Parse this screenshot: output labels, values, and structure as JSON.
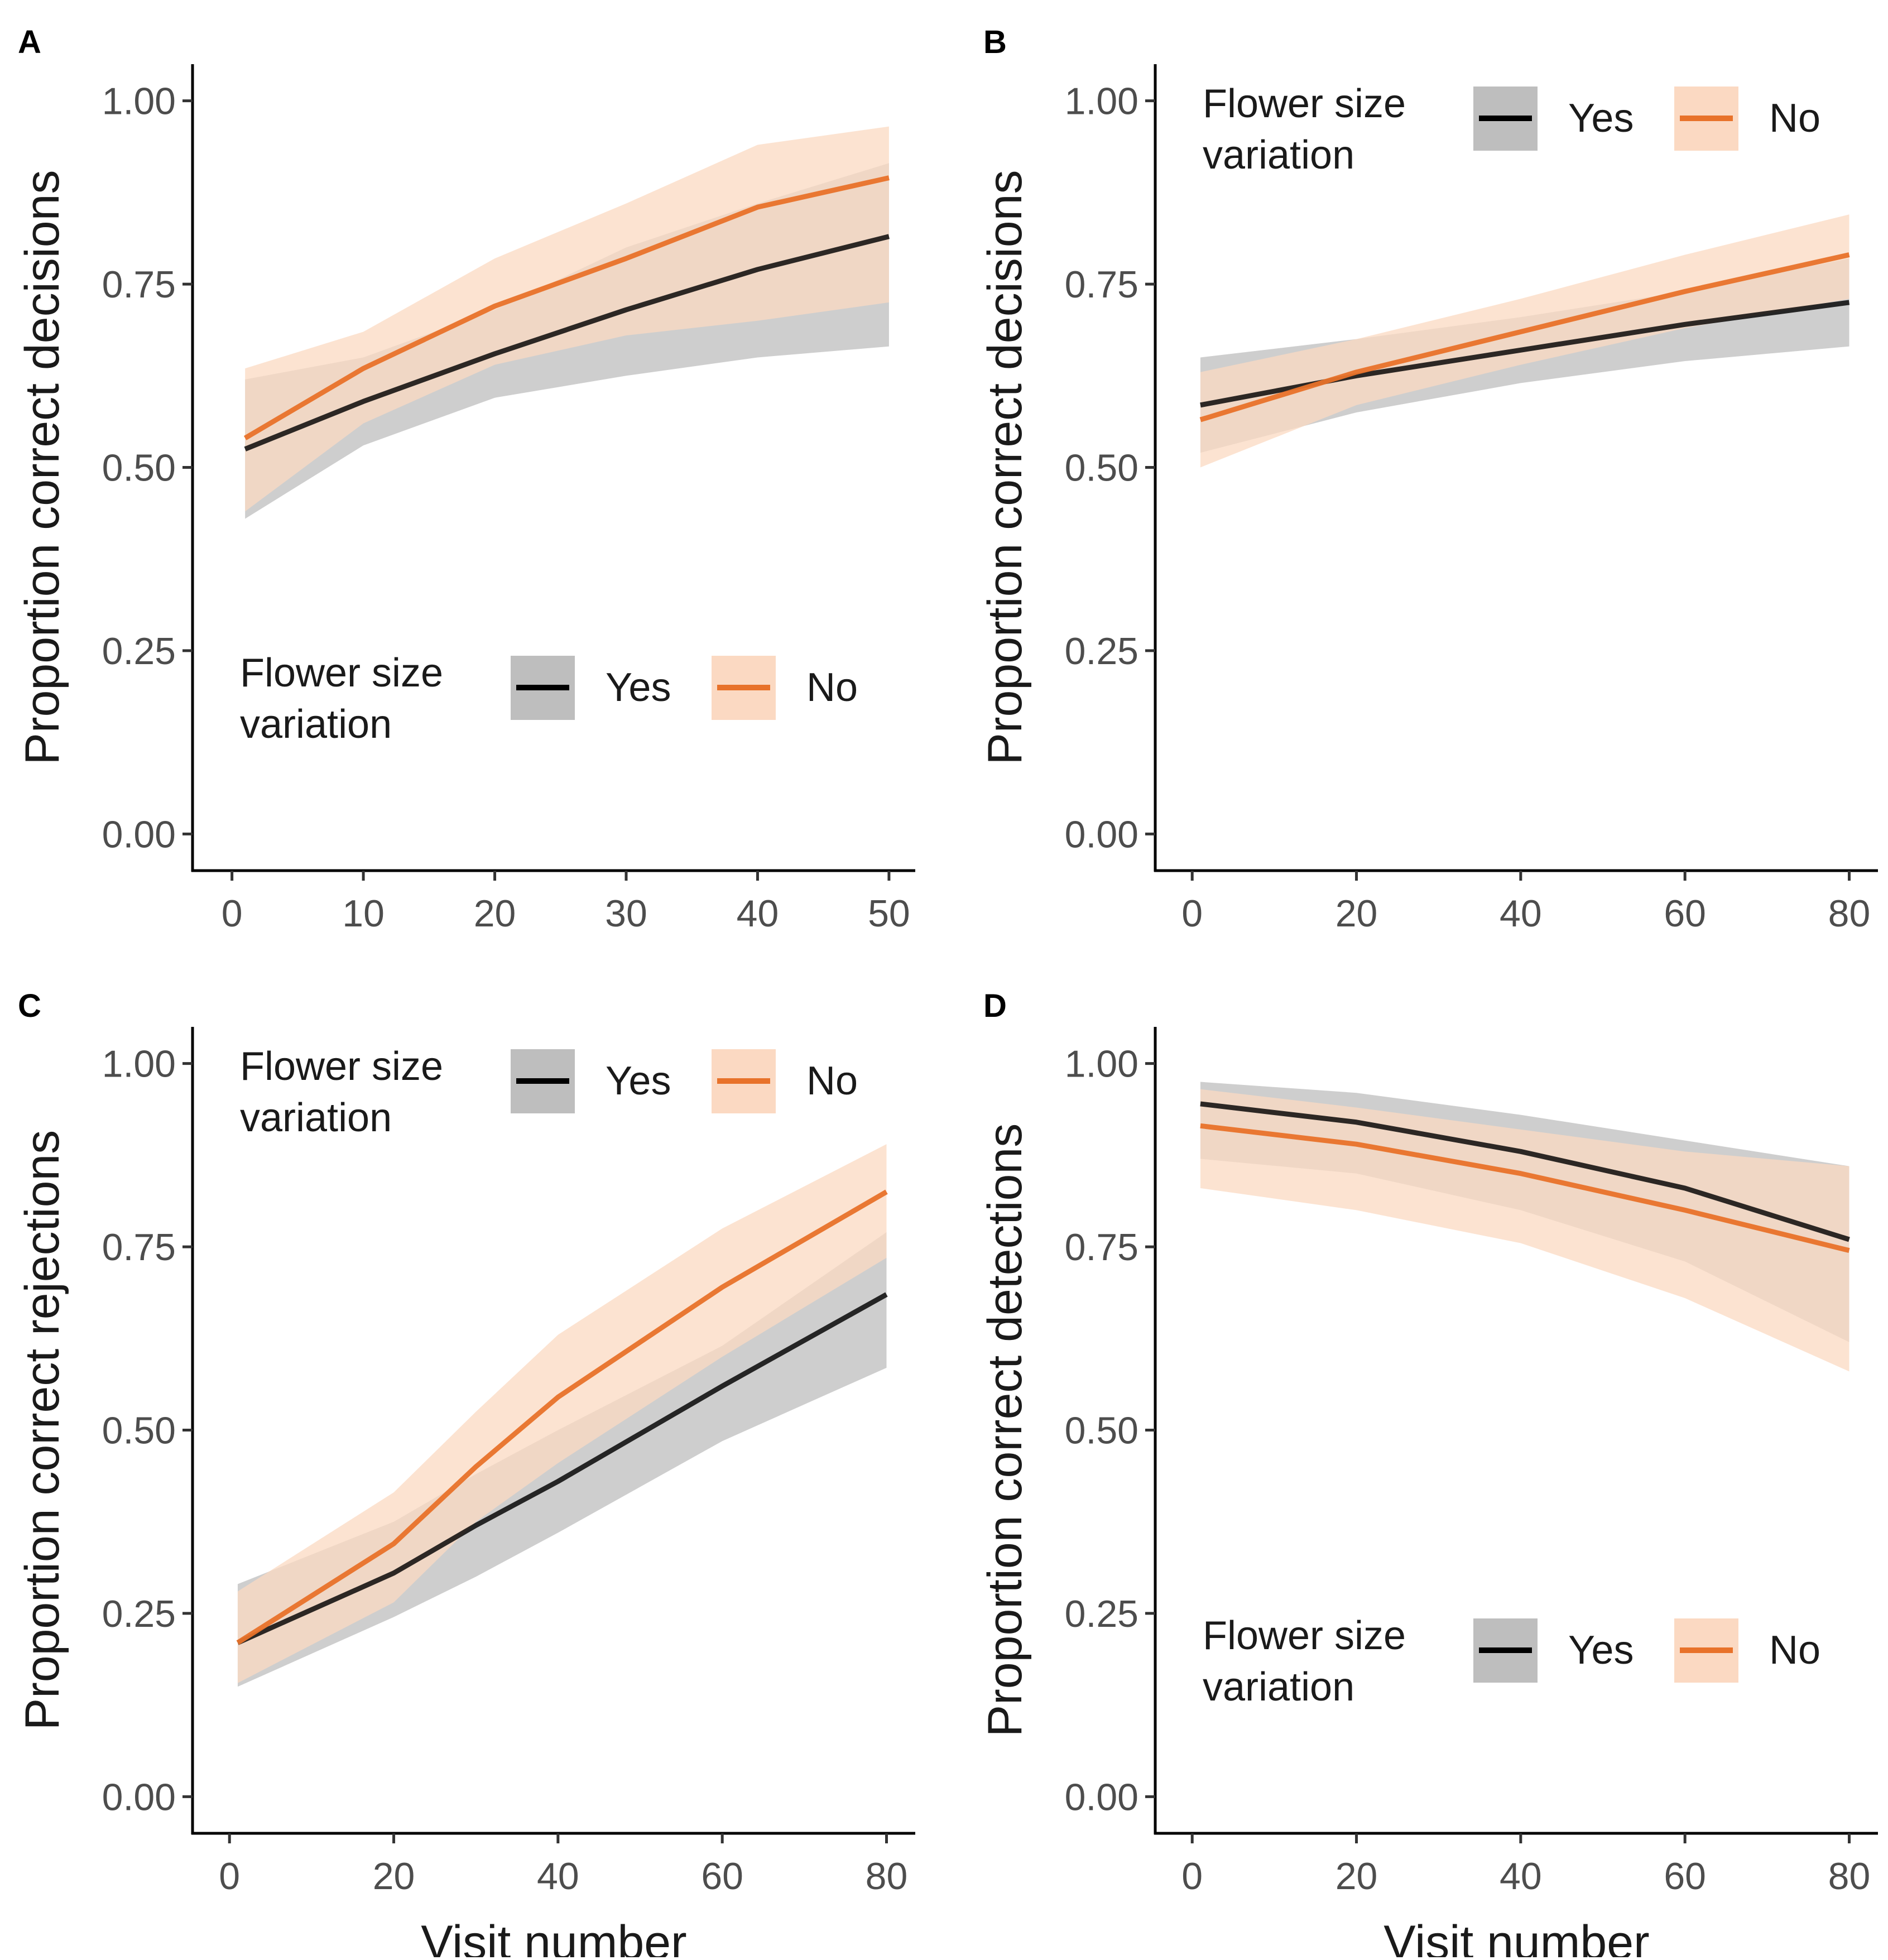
{
  "figure": {
    "colors": {
      "yes_line": "#000000",
      "no_line": "#e8722a",
      "yes_band": "#bebebe",
      "no_band": "#fbd9c2"
    }
  },
  "chart_data": [
    {
      "panel": "A",
      "type": "line",
      "title": "",
      "xlabel": "",
      "ylabel": "Proportion correct decisions",
      "xlim": [
        -3,
        52
      ],
      "ylim": [
        -0.05,
        1.05
      ],
      "xticks": [
        0,
        10,
        20,
        30,
        40,
        50
      ],
      "xtick_labels": [
        "0",
        "10",
        "20",
        "30",
        "40",
        "50"
      ],
      "yticks": [
        0,
        0.25,
        0.5,
        0.75,
        1
      ],
      "ytick_labels": [
        "0.00",
        "0.25",
        "0.50",
        "0.75",
        "1.00"
      ],
      "legend": {
        "position": "bottom-right",
        "title": "Flower size variation",
        "title_lines": [
          "Flower size",
          "variation"
        ],
        "entries": [
          "Yes",
          "No"
        ]
      },
      "series": [
        {
          "name": "Yes",
          "x": [
            1,
            10,
            20,
            30,
            40,
            50
          ],
          "y": [
            0.525,
            0.59,
            0.655,
            0.715,
            0.77,
            0.815
          ],
          "lower": [
            0.43,
            0.53,
            0.595,
            0.625,
            0.65,
            0.665
          ],
          "upper": [
            0.62,
            0.65,
            0.715,
            0.8,
            0.86,
            0.915
          ]
        },
        {
          "name": "No",
          "x": [
            1,
            10,
            20,
            30,
            40,
            50
          ],
          "y": [
            0.54,
            0.635,
            0.72,
            0.785,
            0.855,
            0.895
          ],
          "lower": [
            0.44,
            0.56,
            0.64,
            0.68,
            0.7,
            0.725
          ],
          "upper": [
            0.635,
            0.685,
            0.785,
            0.86,
            0.94,
            0.965
          ]
        }
      ]
    },
    {
      "panel": "B",
      "type": "line",
      "title": "",
      "xlabel": "",
      "ylabel": "Proportion correct decisions",
      "xlim": [
        -4.5,
        83.5
      ],
      "ylim": [
        -0.05,
        1.05
      ],
      "xticks": [
        0,
        20,
        40,
        60,
        80
      ],
      "xtick_labels": [
        "0",
        "20",
        "40",
        "60",
        "80"
      ],
      "yticks": [
        0,
        0.25,
        0.5,
        0.75,
        1
      ],
      "ytick_labels": [
        "0.00",
        "0.25",
        "0.50",
        "0.75",
        "1.00"
      ],
      "legend": {
        "position": "top-right",
        "title": "Flower size variation",
        "title_lines": [
          "Flower size",
          "variation"
        ],
        "entries": [
          "Yes",
          "No"
        ]
      },
      "series": [
        {
          "name": "Yes",
          "x": [
            1,
            20,
            40,
            60,
            80
          ],
          "y": [
            0.585,
            0.625,
            0.66,
            0.695,
            0.725
          ],
          "lower": [
            0.52,
            0.575,
            0.615,
            0.645,
            0.665
          ],
          "upper": [
            0.65,
            0.675,
            0.705,
            0.74,
            0.785
          ]
        },
        {
          "name": "No",
          "x": [
            1,
            20,
            40,
            60,
            80
          ],
          "y": [
            0.565,
            0.63,
            0.685,
            0.74,
            0.79
          ],
          "lower": [
            0.5,
            0.585,
            0.64,
            0.69,
            0.73
          ],
          "upper": [
            0.63,
            0.675,
            0.73,
            0.79,
            0.845
          ]
        }
      ]
    },
    {
      "panel": "C",
      "type": "line",
      "title": "",
      "xlabel": "Visit number",
      "ylabel": "Proportion correct rejections",
      "xlim": [
        -4.5,
        83.5
      ],
      "ylim": [
        -0.05,
        1.05
      ],
      "xticks": [
        0,
        20,
        40,
        60,
        80
      ],
      "xtick_labels": [
        "0",
        "20",
        "40",
        "60",
        "80"
      ],
      "yticks": [
        0,
        0.25,
        0.5,
        0.75,
        1
      ],
      "ytick_labels": [
        "0.00",
        "0.25",
        "0.50",
        "0.75",
        "1.00"
      ],
      "legend": {
        "position": "top-right",
        "title": "Flower size variation",
        "title_lines": [
          "Flower size",
          "variation"
        ],
        "entries": [
          "Yes",
          "No"
        ]
      },
      "series": [
        {
          "name": "Yes",
          "x": [
            1,
            20,
            30,
            40,
            60,
            80
          ],
          "y": [
            0.21,
            0.305,
            0.37,
            0.43,
            0.56,
            0.685
          ],
          "lower": [
            0.15,
            0.245,
            0.3,
            0.36,
            0.485,
            0.585
          ],
          "upper": [
            0.29,
            0.375,
            0.44,
            0.5,
            0.615,
            0.77
          ]
        },
        {
          "name": "No",
          "x": [
            1,
            20,
            30,
            40,
            60,
            80
          ],
          "y": [
            0.21,
            0.345,
            0.45,
            0.545,
            0.695,
            0.825
          ],
          "lower": [
            0.155,
            0.265,
            0.375,
            0.455,
            0.6,
            0.735
          ],
          "upper": [
            0.28,
            0.415,
            0.525,
            0.63,
            0.775,
            0.89
          ]
        }
      ]
    },
    {
      "panel": "D",
      "type": "line",
      "title": "",
      "xlabel": "Visit number",
      "ylabel": "Proportion correct detections",
      "xlim": [
        -4.5,
        83.5
      ],
      "ylim": [
        -0.05,
        1.05
      ],
      "xticks": [
        0,
        20,
        40,
        60,
        80
      ],
      "xtick_labels": [
        "0",
        "20",
        "40",
        "60",
        "80"
      ],
      "yticks": [
        0,
        0.25,
        0.5,
        0.75,
        1
      ],
      "ytick_labels": [
        "0.00",
        "0.25",
        "0.50",
        "0.75",
        "1.00"
      ],
      "legend": {
        "position": "bottom-right",
        "title": "Flower size variation",
        "title_lines": [
          "Flower size",
          "variation"
        ],
        "entries": [
          "Yes",
          "No"
        ]
      },
      "series": [
        {
          "name": "Yes",
          "x": [
            1,
            20,
            40,
            60,
            80
          ],
          "y": [
            0.945,
            0.92,
            0.88,
            0.83,
            0.76
          ],
          "lower": [
            0.87,
            0.85,
            0.8,
            0.73,
            0.62
          ],
          "upper": [
            0.975,
            0.96,
            0.93,
            0.895,
            0.86
          ]
        },
        {
          "name": "No",
          "x": [
            1,
            20,
            40,
            60,
            80
          ],
          "y": [
            0.915,
            0.89,
            0.85,
            0.8,
            0.745
          ],
          "lower": [
            0.83,
            0.8,
            0.755,
            0.68,
            0.58
          ],
          "upper": [
            0.965,
            0.94,
            0.91,
            0.88,
            0.86
          ]
        }
      ]
    }
  ]
}
